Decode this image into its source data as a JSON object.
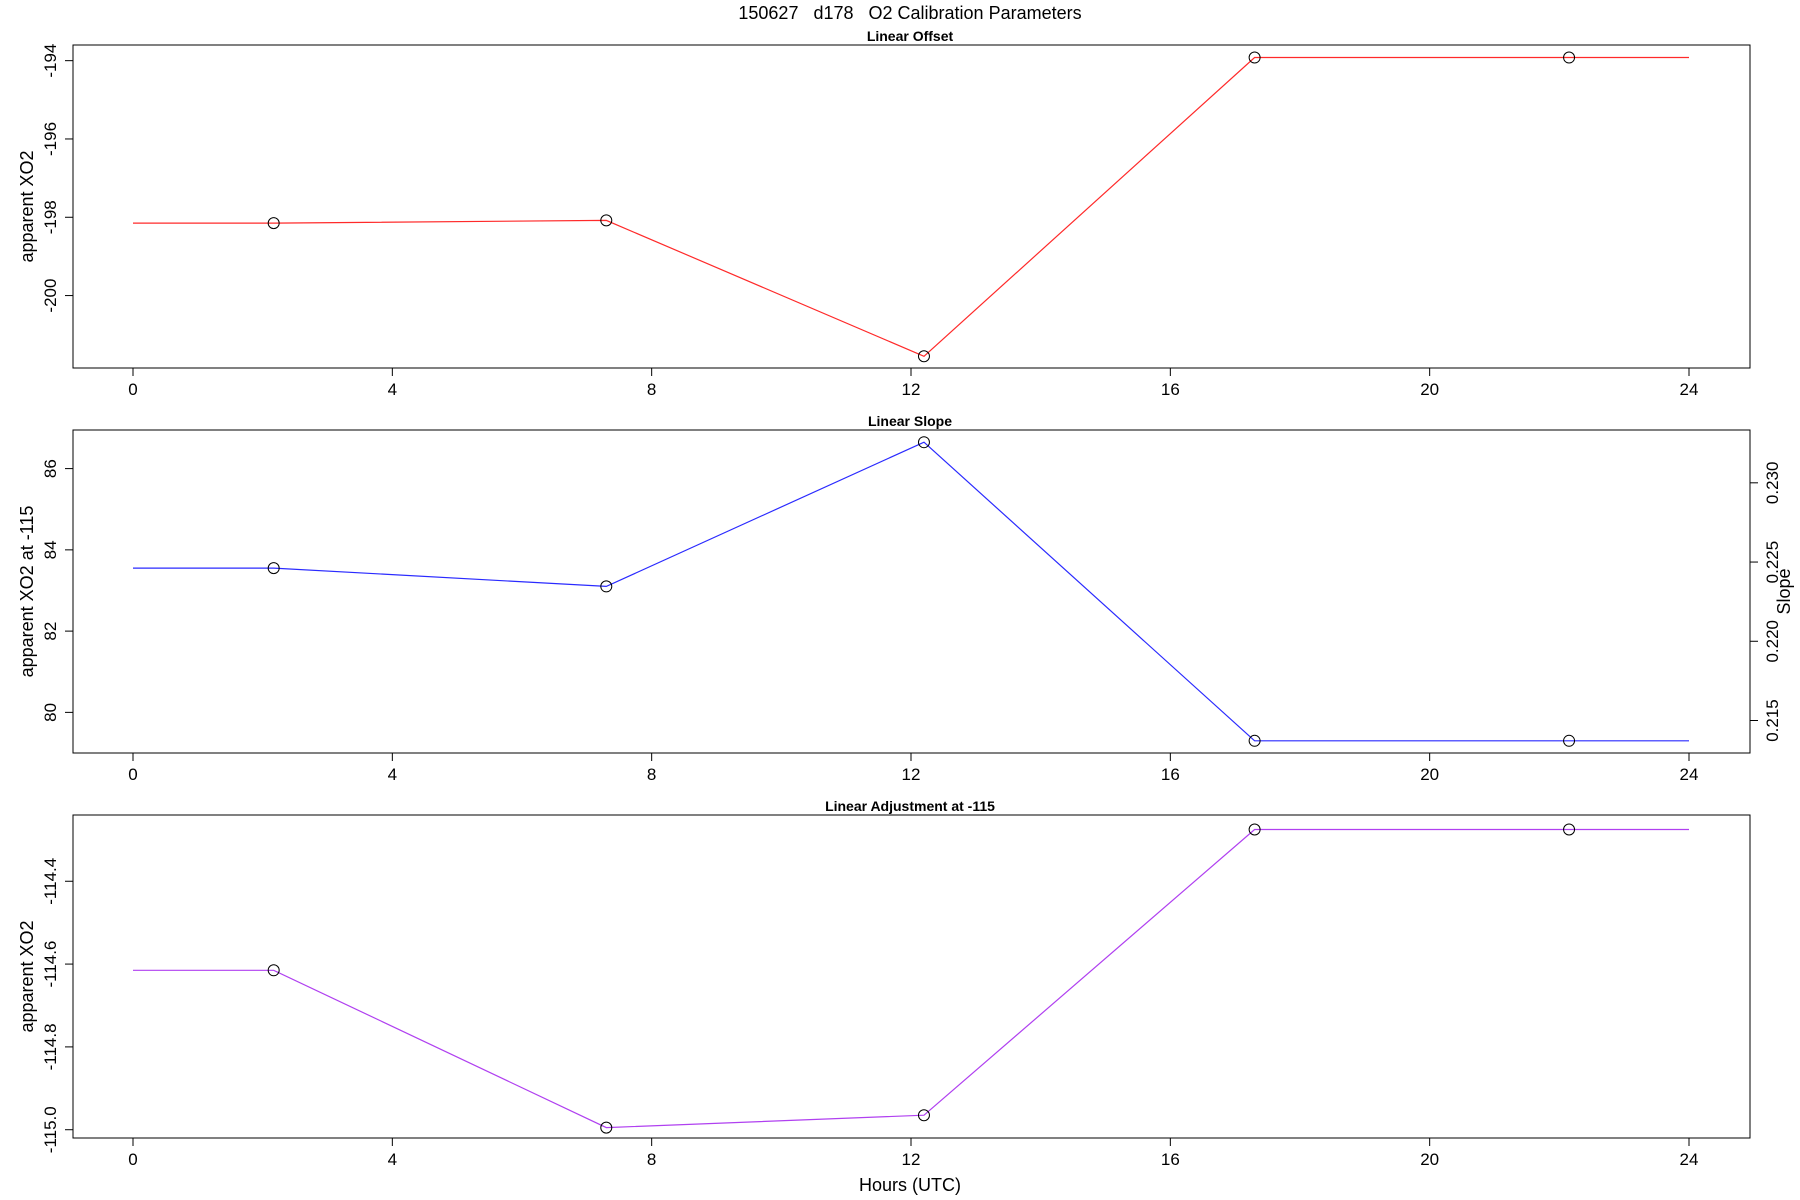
{
  "figure": {
    "title": "150627   d178   O2 Calibration Parameters",
    "xlabel": "Hours (UTC)"
  },
  "chart_data": [
    {
      "type": "line",
      "title": "Linear Offset",
      "xlabel": "",
      "ylabel": "apparent XO2",
      "xlim": [
        0,
        24
      ],
      "ylim": [
        -201.85,
        -193.6
      ],
      "xticks": [
        "0",
        "4",
        "8",
        "12",
        "16",
        "20",
        "24"
      ],
      "yticks": [
        "-200",
        "-198",
        "-196",
        "-194"
      ],
      "line_color": "#ff2a2a",
      "line_x": [
        0,
        2.17,
        7.3,
        12.2,
        17.3,
        22.15,
        24
      ],
      "line_y": [
        -198.15,
        -198.15,
        -198.08,
        -201.55,
        -193.92,
        -193.92,
        -193.92
      ],
      "points": {
        "x": [
          2.17,
          7.3,
          12.2,
          17.3,
          22.15
        ],
        "y": [
          -198.15,
          -198.08,
          -201.55,
          -193.92,
          -193.92
        ]
      }
    },
    {
      "type": "line",
      "title": "Linear Slope",
      "xlabel": "",
      "ylabel": "apparent XO2 at -115",
      "y2label": "Slope",
      "xlim": [
        0,
        24
      ],
      "ylim": [
        79.0,
        86.95
      ],
      "xticks": [
        "0",
        "4",
        "8",
        "12",
        "16",
        "20",
        "24"
      ],
      "yticks": [
        "80",
        "82",
        "84",
        "86"
      ],
      "y2ticks": [
        {
          "label": "0.215",
          "value": 79.8
        },
        {
          "label": "0.220",
          "value": 81.75
        },
        {
          "label": "0.225",
          "value": 83.7
        },
        {
          "label": "0.230",
          "value": 85.65
        }
      ],
      "line_color": "#2a2aff",
      "line_x": [
        0,
        2.17,
        7.3,
        12.2,
        17.3,
        22.15,
        24
      ],
      "line_y": [
        83.55,
        83.55,
        83.1,
        86.65,
        79.3,
        79.3,
        79.3
      ],
      "points": {
        "x": [
          2.17,
          7.3,
          12.2,
          17.3,
          22.15
        ],
        "y": [
          83.55,
          83.1,
          86.65,
          79.3,
          79.3
        ]
      }
    },
    {
      "type": "line",
      "title": "Linear Adjustment at -115",
      "xlabel": "Hours (UTC)",
      "ylabel": "apparent XO2",
      "xlim": [
        0,
        24
      ],
      "ylim": [
        -115.02,
        -114.24
      ],
      "xticks": [
        "0",
        "4",
        "8",
        "12",
        "16",
        "20",
        "24"
      ],
      "yticks": [
        "-115.0",
        "-114.8",
        "-114.6",
        "-114.4"
      ],
      "line_color": "#b040f0",
      "line_x": [
        0,
        2.17,
        7.3,
        12.2,
        17.3,
        22.15,
        24
      ],
      "line_y": [
        -114.615,
        -114.615,
        -114.995,
        -114.965,
        -114.275,
        -114.275,
        -114.275
      ],
      "points": {
        "x": [
          2.17,
          7.3,
          12.2,
          17.3,
          22.15
        ],
        "y": [
          -114.615,
          -114.995,
          -114.965,
          -114.275,
          -114.275
        ]
      }
    }
  ]
}
